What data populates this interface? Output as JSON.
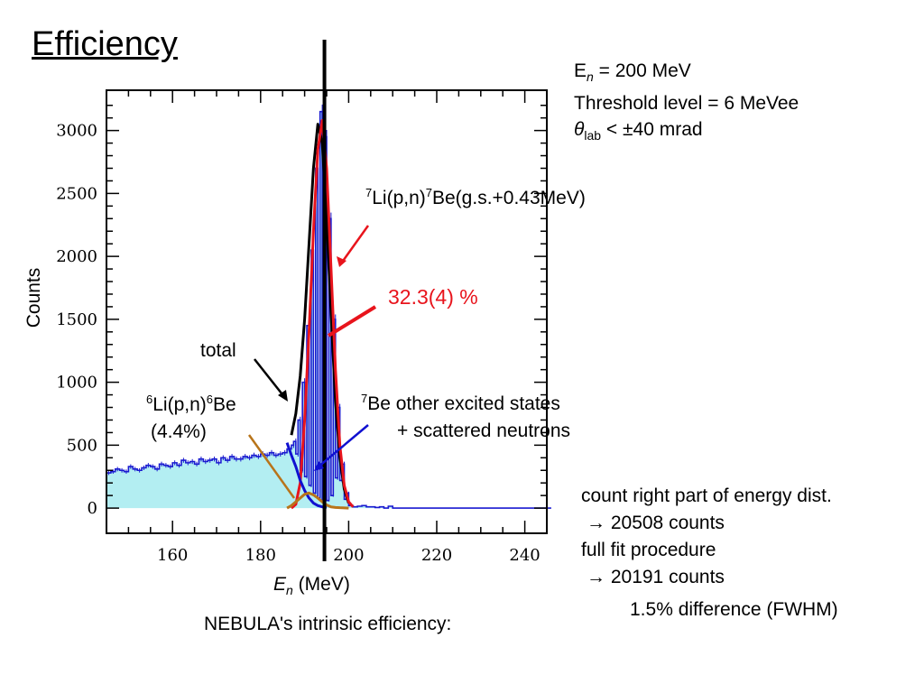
{
  "slide": {
    "title": "Efficiency",
    "conditions": {
      "energy_sym": "E",
      "energy_sub": "n",
      "energy_rest": " = 200 MeV",
      "threshold": "Threshold level = 6 MeVee",
      "theta_sym": "θ",
      "theta_sub": "lab",
      "theta_rest": " < ±40 mrad"
    },
    "notes": {
      "line1": "count right part of energy dist.",
      "line2": "→ 20508 counts",
      "line3": "full fit procedure",
      "line4": "→ 20191 counts",
      "line5": "1.5% difference (FWHM)"
    },
    "caption": "NEBULA's intrinsic efficiency:"
  },
  "annotations": {
    "li7_sup1": "7",
    "li7_a": "Li(p,n)",
    "li7_sup2": "7",
    "li7_b": "Be(g.s.+0.43MeV)",
    "efficiency": "32.3(4) %",
    "total": "total",
    "li6_sup1": "6",
    "li6_a": "Li(p,n)",
    "li6_sup2": "6",
    "li6_b": "Be",
    "li6_pct": "(4.4%)",
    "be7_sup": "7",
    "be7_a": "Be other excited states",
    "be7_b": "+ scattered neutrons"
  },
  "colors": {
    "histogram_fill": "#b3eef2",
    "histogram_line": "#1a1ad0",
    "total_fit": "#000000",
    "gs_fit": "#e8141c",
    "excited_fit": "#1010d0",
    "li6_fit": "#b8741a",
    "efficiency_text": "#e8141c"
  },
  "chart_data": {
    "type": "line",
    "xlabel_sym": "E",
    "xlabel_sub": "n",
    "xlabel_rest": " (MeV)",
    "ylabel": "Counts",
    "xlim": [
      145,
      245
    ],
    "ylim": [
      -200,
      3320
    ],
    "xticks": [
      160,
      180,
      200,
      220,
      240
    ],
    "yticks": [
      0,
      500,
      1000,
      1500,
      2000,
      2500,
      3000
    ],
    "vertical_line_x": 194.5,
    "histogram": {
      "x": [
        145,
        146,
        147,
        148,
        149,
        150,
        151,
        152,
        153,
        154,
        155,
        156,
        157,
        158,
        159,
        160,
        161,
        162,
        163,
        164,
        165,
        166,
        167,
        168,
        169,
        170,
        171,
        172,
        173,
        174,
        175,
        176,
        177,
        178,
        179,
        180,
        181,
        182,
        183,
        184,
        185,
        186,
        187,
        188,
        189,
        190,
        191,
        192,
        193,
        194,
        195,
        196,
        197,
        198,
        199,
        200,
        201,
        202,
        203,
        204,
        205,
        206,
        207,
        208,
        209,
        210,
        211,
        212,
        215,
        220,
        225,
        230,
        235,
        240,
        245
      ],
      "y": [
        280,
        290,
        310,
        300,
        290,
        330,
        310,
        300,
        320,
        340,
        330,
        310,
        350,
        340,
        330,
        360,
        340,
        380,
        360,
        370,
        350,
        390,
        370,
        380,
        390,
        360,
        400,
        380,
        410,
        390,
        390,
        410,
        400,
        420,
        410,
        430,
        420,
        440,
        420,
        430,
        440,
        470,
        500,
        430,
        300,
        250,
        180,
        120,
        80,
        60,
        60,
        100,
        240,
        220,
        70,
        20,
        10,
        15,
        20,
        10,
        10,
        5,
        10,
        0,
        15,
        0,
        0,
        0,
        0,
        0,
        0,
        0,
        0,
        0,
        0
      ],
      "peak": {
        "x": [
          187.5,
          188.5,
          189.5,
          190.5,
          191.5,
          192.5,
          193.5,
          194.5,
          195.5,
          196.5,
          197.5,
          198.5,
          199.5
        ],
        "y": [
          530,
          700,
          1000,
          1450,
          2050,
          2700,
          3150,
          2950,
          2300,
          1500,
          800,
          350,
          120
        ]
      }
    },
    "series": [
      {
        "x": [
          187,
          188,
          189,
          190,
          191,
          192,
          193,
          194,
          195,
          196,
          197,
          198,
          199,
          200
        ],
        "y": [
          580,
          750,
          1050,
          1500,
          2100,
          2700,
          3050,
          2900,
          2300,
          1550,
          850,
          400,
          150,
          40
        ]
      },
      {
        "x": [
          187,
          188,
          189,
          190,
          191,
          192,
          193,
          194,
          195,
          196,
          197,
          198,
          199,
          200,
          201
        ],
        "y": [
          0,
          30,
          200,
          700,
          1400,
          2200,
          2850,
          3080,
          2700,
          1900,
          1100,
          500,
          180,
          50,
          10
        ]
      },
      {
        "x": [
          186,
          187,
          188,
          189,
          190,
          191,
          192,
          193,
          194,
          195
        ],
        "y": [
          520,
          420,
          330,
          220,
          140,
          80,
          40,
          20,
          10,
          5
        ]
      },
      {
        "x": [
          186,
          187,
          188,
          189,
          190,
          191,
          192,
          193,
          194,
          195,
          196,
          197,
          198,
          199,
          200
        ],
        "y": [
          0,
          20,
          50,
          80,
          110,
          120,
          105,
          80,
          50,
          25,
          10,
          5,
          3,
          2,
          0
        ]
      }
    ]
  }
}
